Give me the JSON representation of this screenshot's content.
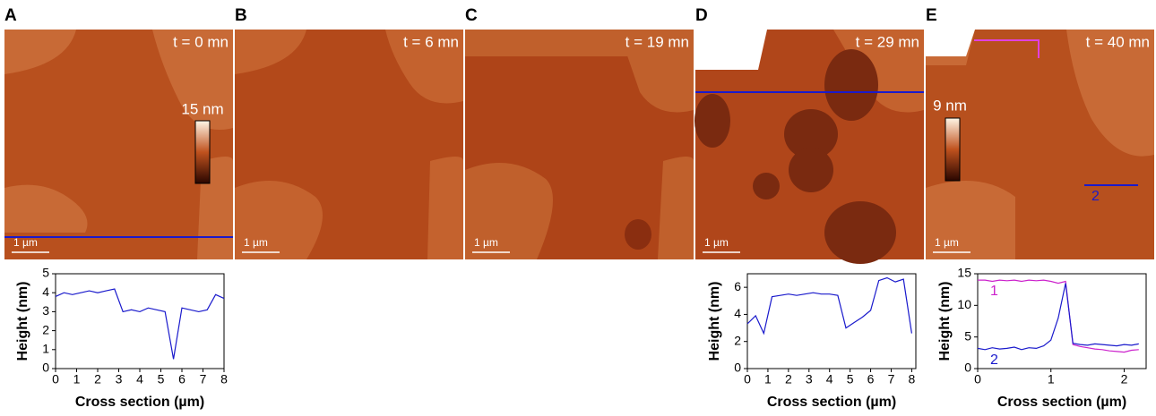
{
  "panels": [
    {
      "label": "A",
      "time": "t = 0 mn",
      "scale_bar": "1 µm"
    },
    {
      "label": "B",
      "time": "t = 6 mn",
      "scale_bar": "1 µm"
    },
    {
      "label": "C",
      "time": "t = 19 mn",
      "scale_bar": "1 µm"
    },
    {
      "label": "D",
      "time": "t = 29 mn",
      "scale_bar": "1 µm"
    },
    {
      "label": "E",
      "time": "t = 40 mn",
      "scale_bar": "1 µm"
    }
  ],
  "colorbars": [
    "15 nm",
    "9 nm"
  ],
  "profile_marker": "2",
  "chart_data": [
    {
      "type": "line",
      "ylabel": "Height (nm)",
      "xlabel": "Cross section (µm)",
      "x": [
        0,
        0.4,
        0.8,
        1.2,
        1.6,
        2,
        2.4,
        2.8,
        3.2,
        3.6,
        4,
        4.4,
        4.8,
        5.2,
        5.6,
        6,
        6.4,
        6.8,
        7.2,
        7.6,
        8
      ],
      "series": [
        {
          "color": "#1a1acc",
          "values": [
            3.8,
            4.0,
            3.9,
            4.0,
            4.1,
            4.0,
            4.1,
            4.2,
            3.0,
            3.1,
            3.0,
            3.2,
            3.1,
            3.0,
            0.5,
            3.2,
            3.1,
            3.0,
            3.1,
            3.9,
            3.7
          ]
        }
      ],
      "xlim": [
        0,
        8
      ],
      "ylim": [
        0,
        5
      ],
      "xticks": [
        0,
        1,
        2,
        3,
        4,
        5,
        6,
        7,
        8
      ],
      "yticks": [
        0,
        1,
        2,
        3,
        4,
        5
      ]
    },
    {
      "type": "line",
      "ylabel": "Height (nm)",
      "xlabel": "Cross section (µm)",
      "x": [
        0,
        0.4,
        0.8,
        1.2,
        1.6,
        2,
        2.4,
        2.8,
        3.2,
        3.6,
        4,
        4.4,
        4.8,
        5.2,
        5.6,
        6,
        6.4,
        6.8,
        7.2,
        7.6,
        8
      ],
      "series": [
        {
          "color": "#1a1acc",
          "values": [
            3.3,
            3.9,
            2.6,
            5.3,
            5.4,
            5.5,
            5.4,
            5.5,
            5.6,
            5.5,
            5.5,
            5.4,
            3.0,
            3.4,
            3.8,
            4.3,
            6.5,
            6.7,
            6.4,
            6.6,
            2.6
          ]
        }
      ],
      "xlim": [
        0,
        8.2
      ],
      "ylim": [
        0,
        7
      ],
      "xticks": [
        0,
        1,
        2,
        3,
        4,
        5,
        6,
        7,
        8
      ],
      "yticks": [
        0,
        2,
        4,
        6
      ]
    },
    {
      "type": "line",
      "ylabel": "Height (nm)",
      "xlabel": "Cross section (µm)",
      "x": [
        0,
        0.1,
        0.2,
        0.3,
        0.4,
        0.5,
        0.6,
        0.7,
        0.8,
        0.9,
        1,
        1.1,
        1.2,
        1.3,
        1.4,
        1.5,
        1.6,
        1.7,
        1.8,
        1.9,
        2,
        2.1,
        2.2
      ],
      "series": [
        {
          "name": "1",
          "color": "#cc22cc",
          "values": [
            14,
            14,
            13.8,
            14,
            13.9,
            14,
            13.8,
            14,
            13.9,
            14,
            13.8,
            13.5,
            13.8,
            3.8,
            3.5,
            3.3,
            3.1,
            3.0,
            2.8,
            2.7,
            2.6,
            2.9,
            3.0
          ]
        },
        {
          "name": "2",
          "color": "#1a1acc",
          "values": [
            3.2,
            3.0,
            3.3,
            3.1,
            3.2,
            3.4,
            3.0,
            3.3,
            3.2,
            3.6,
            4.5,
            8,
            13.5,
            4.0,
            3.8,
            3.7,
            3.9,
            3.8,
            3.7,
            3.6,
            3.8,
            3.7,
            3.9
          ]
        }
      ],
      "xlim": [
        0,
        2.3
      ],
      "ylim": [
        0,
        15
      ],
      "xticks": [
        0,
        1,
        2
      ],
      "yticks": [
        0,
        5,
        10,
        15
      ]
    }
  ]
}
